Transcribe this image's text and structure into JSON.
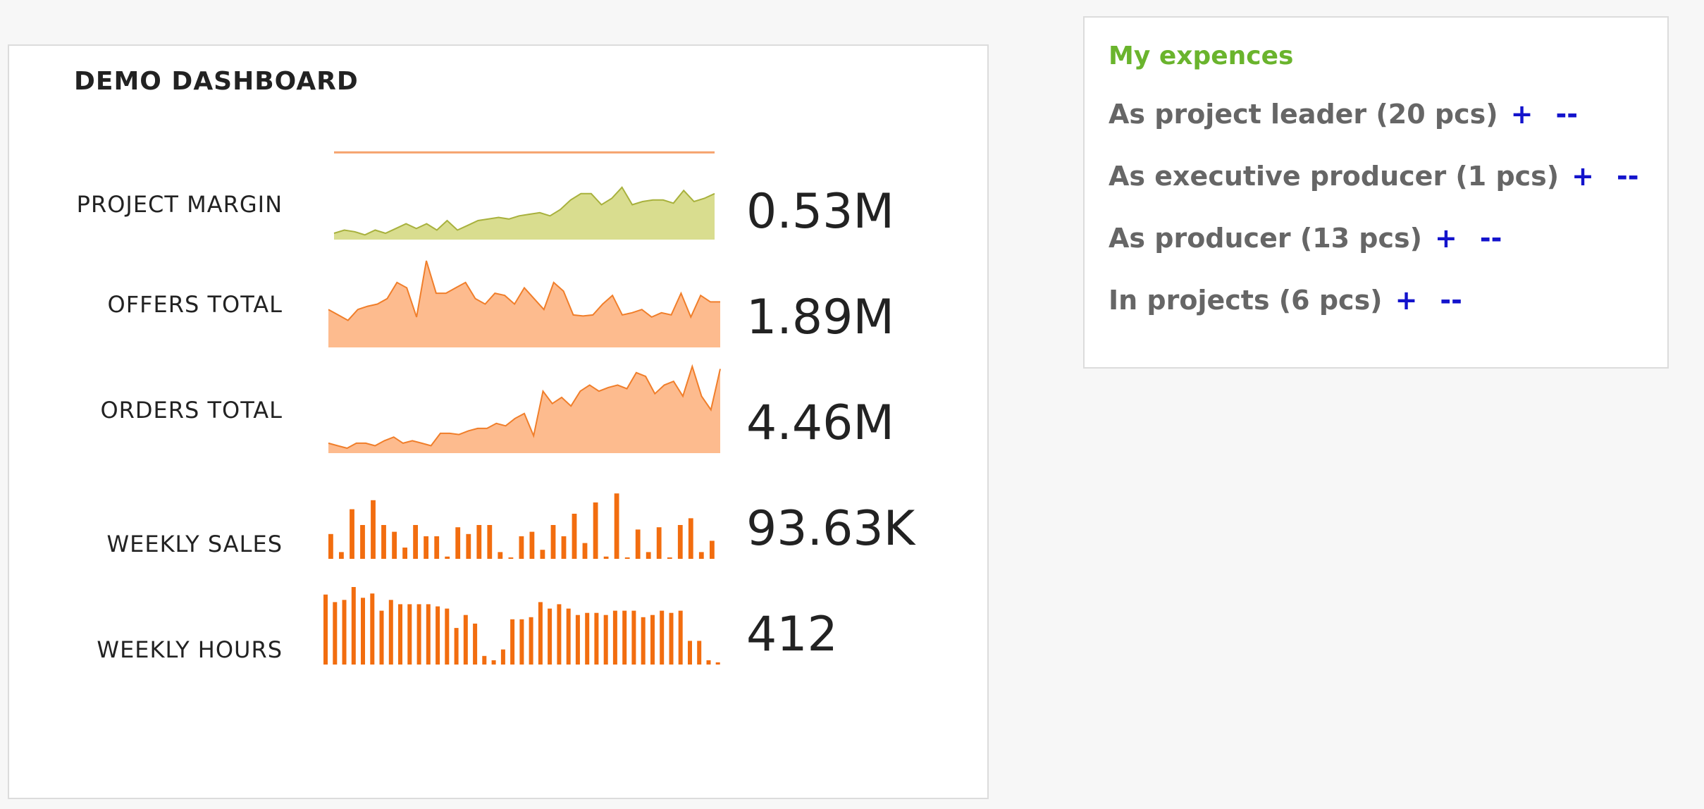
{
  "dashboard": {
    "title": "DEMO DASHBOARD",
    "metrics": [
      {
        "label": "PROJECT MARGIN",
        "value": "0.53M"
      },
      {
        "label": "OFFERS TOTAL",
        "value": "1.89M"
      },
      {
        "label": "ORDERS TOTAL",
        "value": "4.46M"
      },
      {
        "label": "WEEKLY SALES",
        "value": "93.63K"
      },
      {
        "label": "WEEKLY HOURS",
        "value": "412"
      }
    ]
  },
  "expenses": {
    "title": "My expences",
    "rows": [
      {
        "text": "As project leader (20 pcs)",
        "plus": "+",
        "minus": "--"
      },
      {
        "text": "As executive producer (1 pcs)",
        "plus": "+",
        "minus": "--"
      },
      {
        "text": "As producer (13 pcs)",
        "plus": "+",
        "minus": "--"
      },
      {
        "text": "In projects (6 pcs)",
        "plus": "+",
        "minus": "--"
      }
    ]
  },
  "colors": {
    "margin_fill": "#d9dd8f",
    "margin_line": "#a8b13d",
    "margin_target": "#f5a26c",
    "area_fill": "#fdbb8e",
    "area_line": "#f07e2a",
    "bar": "#f26d0f",
    "accent_green": "#6ab42d",
    "link_blue": "#1313cc"
  },
  "chart_data": [
    {
      "type": "area",
      "name": "PROJECT MARGIN",
      "values": [
        4,
        6,
        5,
        3,
        6,
        4,
        7,
        10,
        7,
        10,
        6,
        12,
        6,
        9,
        12,
        13,
        14,
        13,
        15,
        16,
        17,
        15,
        19,
        25,
        29,
        29,
        22,
        26,
        33,
        22,
        24,
        25,
        25,
        23,
        31,
        24,
        26,
        29
      ],
      "target": 55,
      "ylim": [
        0,
        60
      ]
    },
    {
      "type": "area",
      "name": "OFFERS TOTAL",
      "values": [
        35,
        30,
        25,
        35,
        38,
        40,
        45,
        60,
        55,
        28,
        80,
        50,
        50,
        55,
        60,
        45,
        40,
        50,
        48,
        40,
        55,
        45,
        35,
        60,
        52,
        30,
        29,
        30,
        40,
        48,
        30,
        32,
        35,
        28,
        32,
        30,
        50,
        28,
        48,
        42,
        42
      ],
      "ylim": [
        0,
        80
      ]
    },
    {
      "type": "area",
      "name": "ORDERS TOTAL",
      "values": [
        8,
        6,
        4,
        8,
        8,
        6,
        10,
        13,
        8,
        10,
        8,
        6,
        16,
        16,
        15,
        18,
        20,
        20,
        24,
        22,
        28,
        32,
        14,
        50,
        40,
        45,
        38,
        50,
        55,
        50,
        53,
        55,
        52,
        65,
        62,
        48,
        55,
        58,
        46,
        70,
        46,
        35,
        68
      ],
      "ylim": [
        0,
        70
      ]
    },
    {
      "type": "bar",
      "name": "WEEKLY SALES",
      "values": [
        22,
        6,
        44,
        30,
        52,
        30,
        24,
        10,
        30,
        20,
        20,
        2,
        28,
        22,
        30,
        30,
        6,
        0,
        20,
        24,
        8,
        30,
        20,
        40,
        14,
        50,
        2,
        58,
        0,
        26,
        6,
        28,
        0,
        30,
        36,
        6,
        16
      ],
      "ylim": [
        0,
        60
      ]
    },
    {
      "type": "bar",
      "name": "WEEKLY HOURS",
      "values": [
        65,
        58,
        60,
        72,
        62,
        66,
        50,
        60,
        56,
        56,
        56,
        56,
        54,
        52,
        34,
        46,
        38,
        8,
        4,
        14,
        42,
        42,
        44,
        58,
        52,
        56,
        52,
        46,
        48,
        48,
        46,
        50,
        50,
        50,
        44,
        46,
        50,
        48,
        50,
        22,
        22,
        4,
        2
      ],
      "ylim": [
        0,
        72
      ]
    }
  ]
}
